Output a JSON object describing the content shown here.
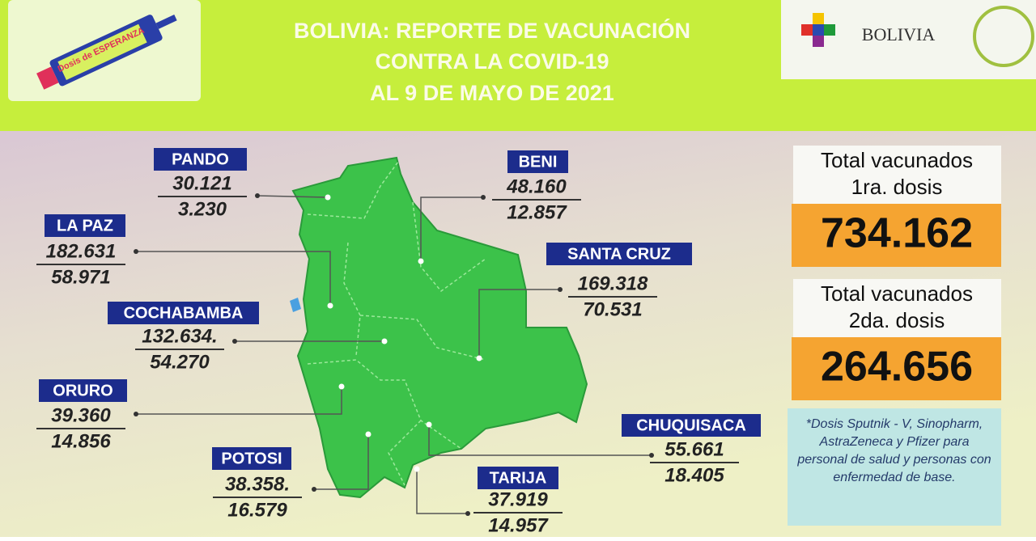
{
  "header": {
    "title_lines": [
      "BOLIVIA: REPORTE DE VACUNACIÓN",
      "CONTRA LA COVID-19",
      "AL 9 DE MAYO DE 2021"
    ],
    "logo_left": "Dosis de ESPERANZA",
    "logo_right": "BOLIVIA"
  },
  "departments": [
    {
      "name": "PANDO",
      "first": "30.121",
      "second": "3.230"
    },
    {
      "name": "BENI",
      "first": "48.160",
      "second": "12.857"
    },
    {
      "name": "LA PAZ",
      "first": "182.631",
      "second": "58.971"
    },
    {
      "name": "SANTA CRUZ",
      "first": "169.318",
      "second": "70.531"
    },
    {
      "name": "COCHABAMBA",
      "first": "132.634.",
      "second": "54.270"
    },
    {
      "name": "ORURO",
      "first": "39.360",
      "second": "14.856"
    },
    {
      "name": "POTOSI",
      "first": "38.358.",
      "second": "16.579"
    },
    {
      "name": "TARIJA",
      "first": "37.919",
      "second": "14.957"
    },
    {
      "name": "CHUQUISACA",
      "first": "55.661",
      "second": "18.405"
    }
  ],
  "totals": [
    {
      "label_lines": [
        "Total vacunados",
        "1ra. dosis"
      ],
      "value": "734.162"
    },
    {
      "label_lines": [
        "Total vacunados",
        "2da. dosis"
      ],
      "value": "264.656"
    }
  ],
  "note": "*Dosis Sputnik - V, Sinopharm, AstraZeneca y Pfizer para personal de salud y personas con enfermedad de base."
}
